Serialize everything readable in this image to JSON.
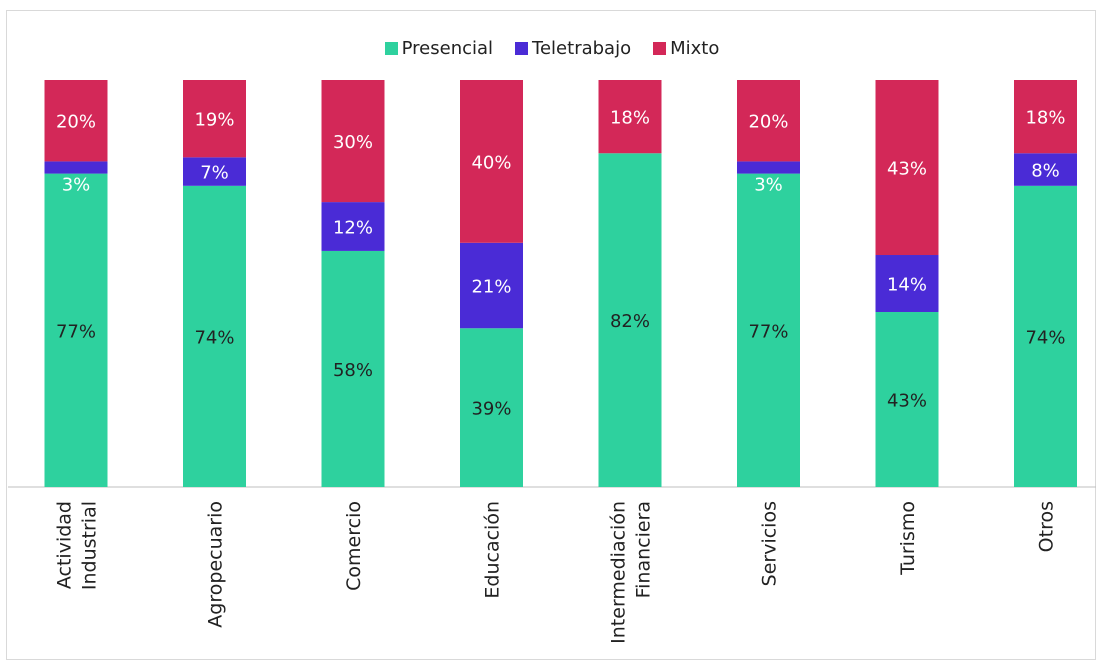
{
  "chart_data": {
    "type": "bar",
    "stacked": true,
    "categories": [
      [
        "Actividad",
        "Industrial"
      ],
      [
        "Agropecuario"
      ],
      [
        "Comercio"
      ],
      [
        "Educación"
      ],
      [
        "Intermediación",
        "Financiera"
      ],
      [
        "Servicios"
      ],
      [
        "Turismo"
      ],
      [
        "Otros"
      ]
    ],
    "series": [
      {
        "name": "Presencial",
        "color": "#2ed19e",
        "label_color": "#222222",
        "values": [
          77,
          74,
          58,
          39,
          82,
          77,
          43,
          74
        ],
        "labels": [
          "77%",
          "74%",
          "58%",
          "39%",
          "82%",
          "77%",
          "43%",
          "74%"
        ]
      },
      {
        "name": "Teletrabajo",
        "color": "#4a2bd6",
        "label_color": "#ffffff",
        "values": [
          3,
          7,
          12,
          21,
          0,
          3,
          14,
          8
        ],
        "labels": [
          "3%",
          "7%",
          "12%",
          "21%",
          "",
          "3%",
          "14%",
          "8%"
        ]
      },
      {
        "name": "Mixto",
        "color": "#d32858",
        "label_color": "#ffffff",
        "values": [
          20,
          19,
          30,
          40,
          18,
          20,
          43,
          18
        ],
        "labels": [
          "20%",
          "19%",
          "30%",
          "40%",
          "18%",
          "20%",
          "43%",
          "18%"
        ]
      }
    ],
    "ylim": [
      0,
      100
    ],
    "grid": false,
    "legend_position": "top-center"
  }
}
